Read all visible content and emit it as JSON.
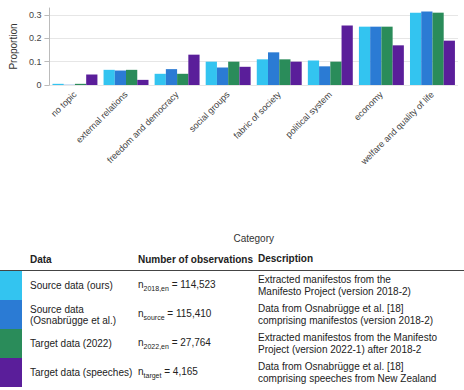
{
  "chart_data": {
    "type": "bar",
    "x_label": "Category",
    "y_label": "Proportion",
    "categories": [
      "no topic",
      "external relations",
      "freedom and democracy",
      "social groups",
      "fabric of society",
      "political system",
      "economy",
      "welfare and quality of life"
    ],
    "series": [
      {
        "name": "Source data (ours)",
        "color": "#33c4f0",
        "values": [
          0.005,
          0.065,
          0.048,
          0.1,
          0.11,
          0.105,
          0.25,
          0.31
        ]
      },
      {
        "name": "Source data (Osnabrügge et al.)",
        "color": "#2b7bd4",
        "values": [
          0.001,
          0.062,
          0.068,
          0.075,
          0.14,
          0.08,
          0.25,
          0.315
        ]
      },
      {
        "name": "Target data (2022)",
        "color": "#2a8c5a",
        "values": [
          0.005,
          0.065,
          0.048,
          0.1,
          0.11,
          0.1,
          0.25,
          0.31
        ]
      },
      {
        "name": "Target data (speeches)",
        "color": "#5a1e9a",
        "values": [
          0.045,
          0.022,
          0.13,
          0.078,
          0.1,
          0.255,
          0.17,
          0.19
        ]
      }
    ],
    "ylim": [
      0,
      0.33
    ],
    "yticks": [
      0,
      0.1,
      0.2,
      0.3
    ],
    "grid": true
  },
  "table": {
    "header": [
      "Data",
      "Number of observations",
      "Description"
    ],
    "rows": [
      {
        "n": {
          "base": "n",
          "sub": "2018,en",
          "rest": " = 114,523"
        },
        "description": [
          "Extracted manifestos from the",
          "Manifesto Project (version 2018-2)"
        ]
      },
      {
        "n": {
          "base": "n",
          "sub": "source",
          "rest": " = 115,410"
        },
        "description": [
          "Data from Osnabrügge et al. [18]",
          "comprising manifestos (version 2018-2)"
        ]
      },
      {
        "n": {
          "base": "n",
          "sub": "2022,en",
          "rest": " = 27,764"
        },
        "description": [
          "Extracted manifestos from the Manifesto",
          "Project (version 2022-1) after 2018-2"
        ]
      },
      {
        "n": {
          "base": "n",
          "sub": "target",
          "rest": " = 4,165"
        },
        "description": [
          "Data from Osnabrügge et al. [18]",
          "comprising speeches from New Zealand"
        ]
      }
    ]
  }
}
